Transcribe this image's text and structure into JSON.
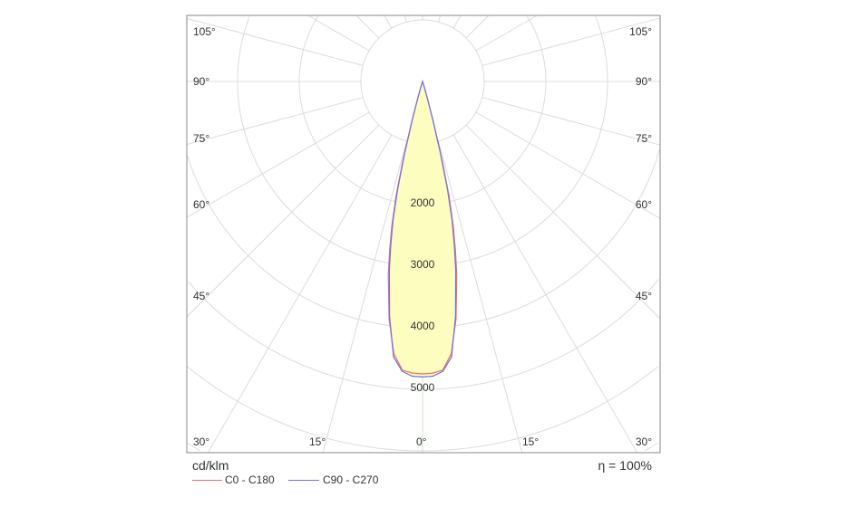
{
  "chart_data": {
    "type": "polar",
    "unit_label": "cd/klm",
    "efficiency_label": "η = 100%",
    "radial_ticks": [
      2000,
      3000,
      4000,
      5000
    ],
    "radial_grid_step": 1000,
    "angle_ticks": [
      "0°",
      "15°",
      "30°",
      "45°",
      "60°",
      "75°",
      "90°",
      "105°"
    ],
    "grid": true,
    "legend_position": "bottom-left",
    "fill_color": "#fdfdc0",
    "series": [
      {
        "name": "C0 - C180",
        "color": "#e87070",
        "angles": [
          0,
          2,
          4,
          6,
          8,
          10,
          11,
          12,
          13,
          14,
          15,
          16,
          17,
          18
        ],
        "values": [
          4750,
          4740,
          4700,
          4450,
          3900,
          3200,
          2800,
          2400,
          1900,
          1300,
          700,
          300,
          100,
          0
        ]
      },
      {
        "name": "C90 - C270",
        "color": "#7070e0",
        "angles": [
          0,
          2,
          4,
          6,
          8,
          10,
          11,
          12,
          13,
          14,
          15,
          16,
          17,
          18
        ],
        "values": [
          4800,
          4790,
          4720,
          4500,
          3850,
          3100,
          2700,
          2300,
          1800,
          1200,
          650,
          250,
          80,
          0
        ]
      }
    ]
  }
}
